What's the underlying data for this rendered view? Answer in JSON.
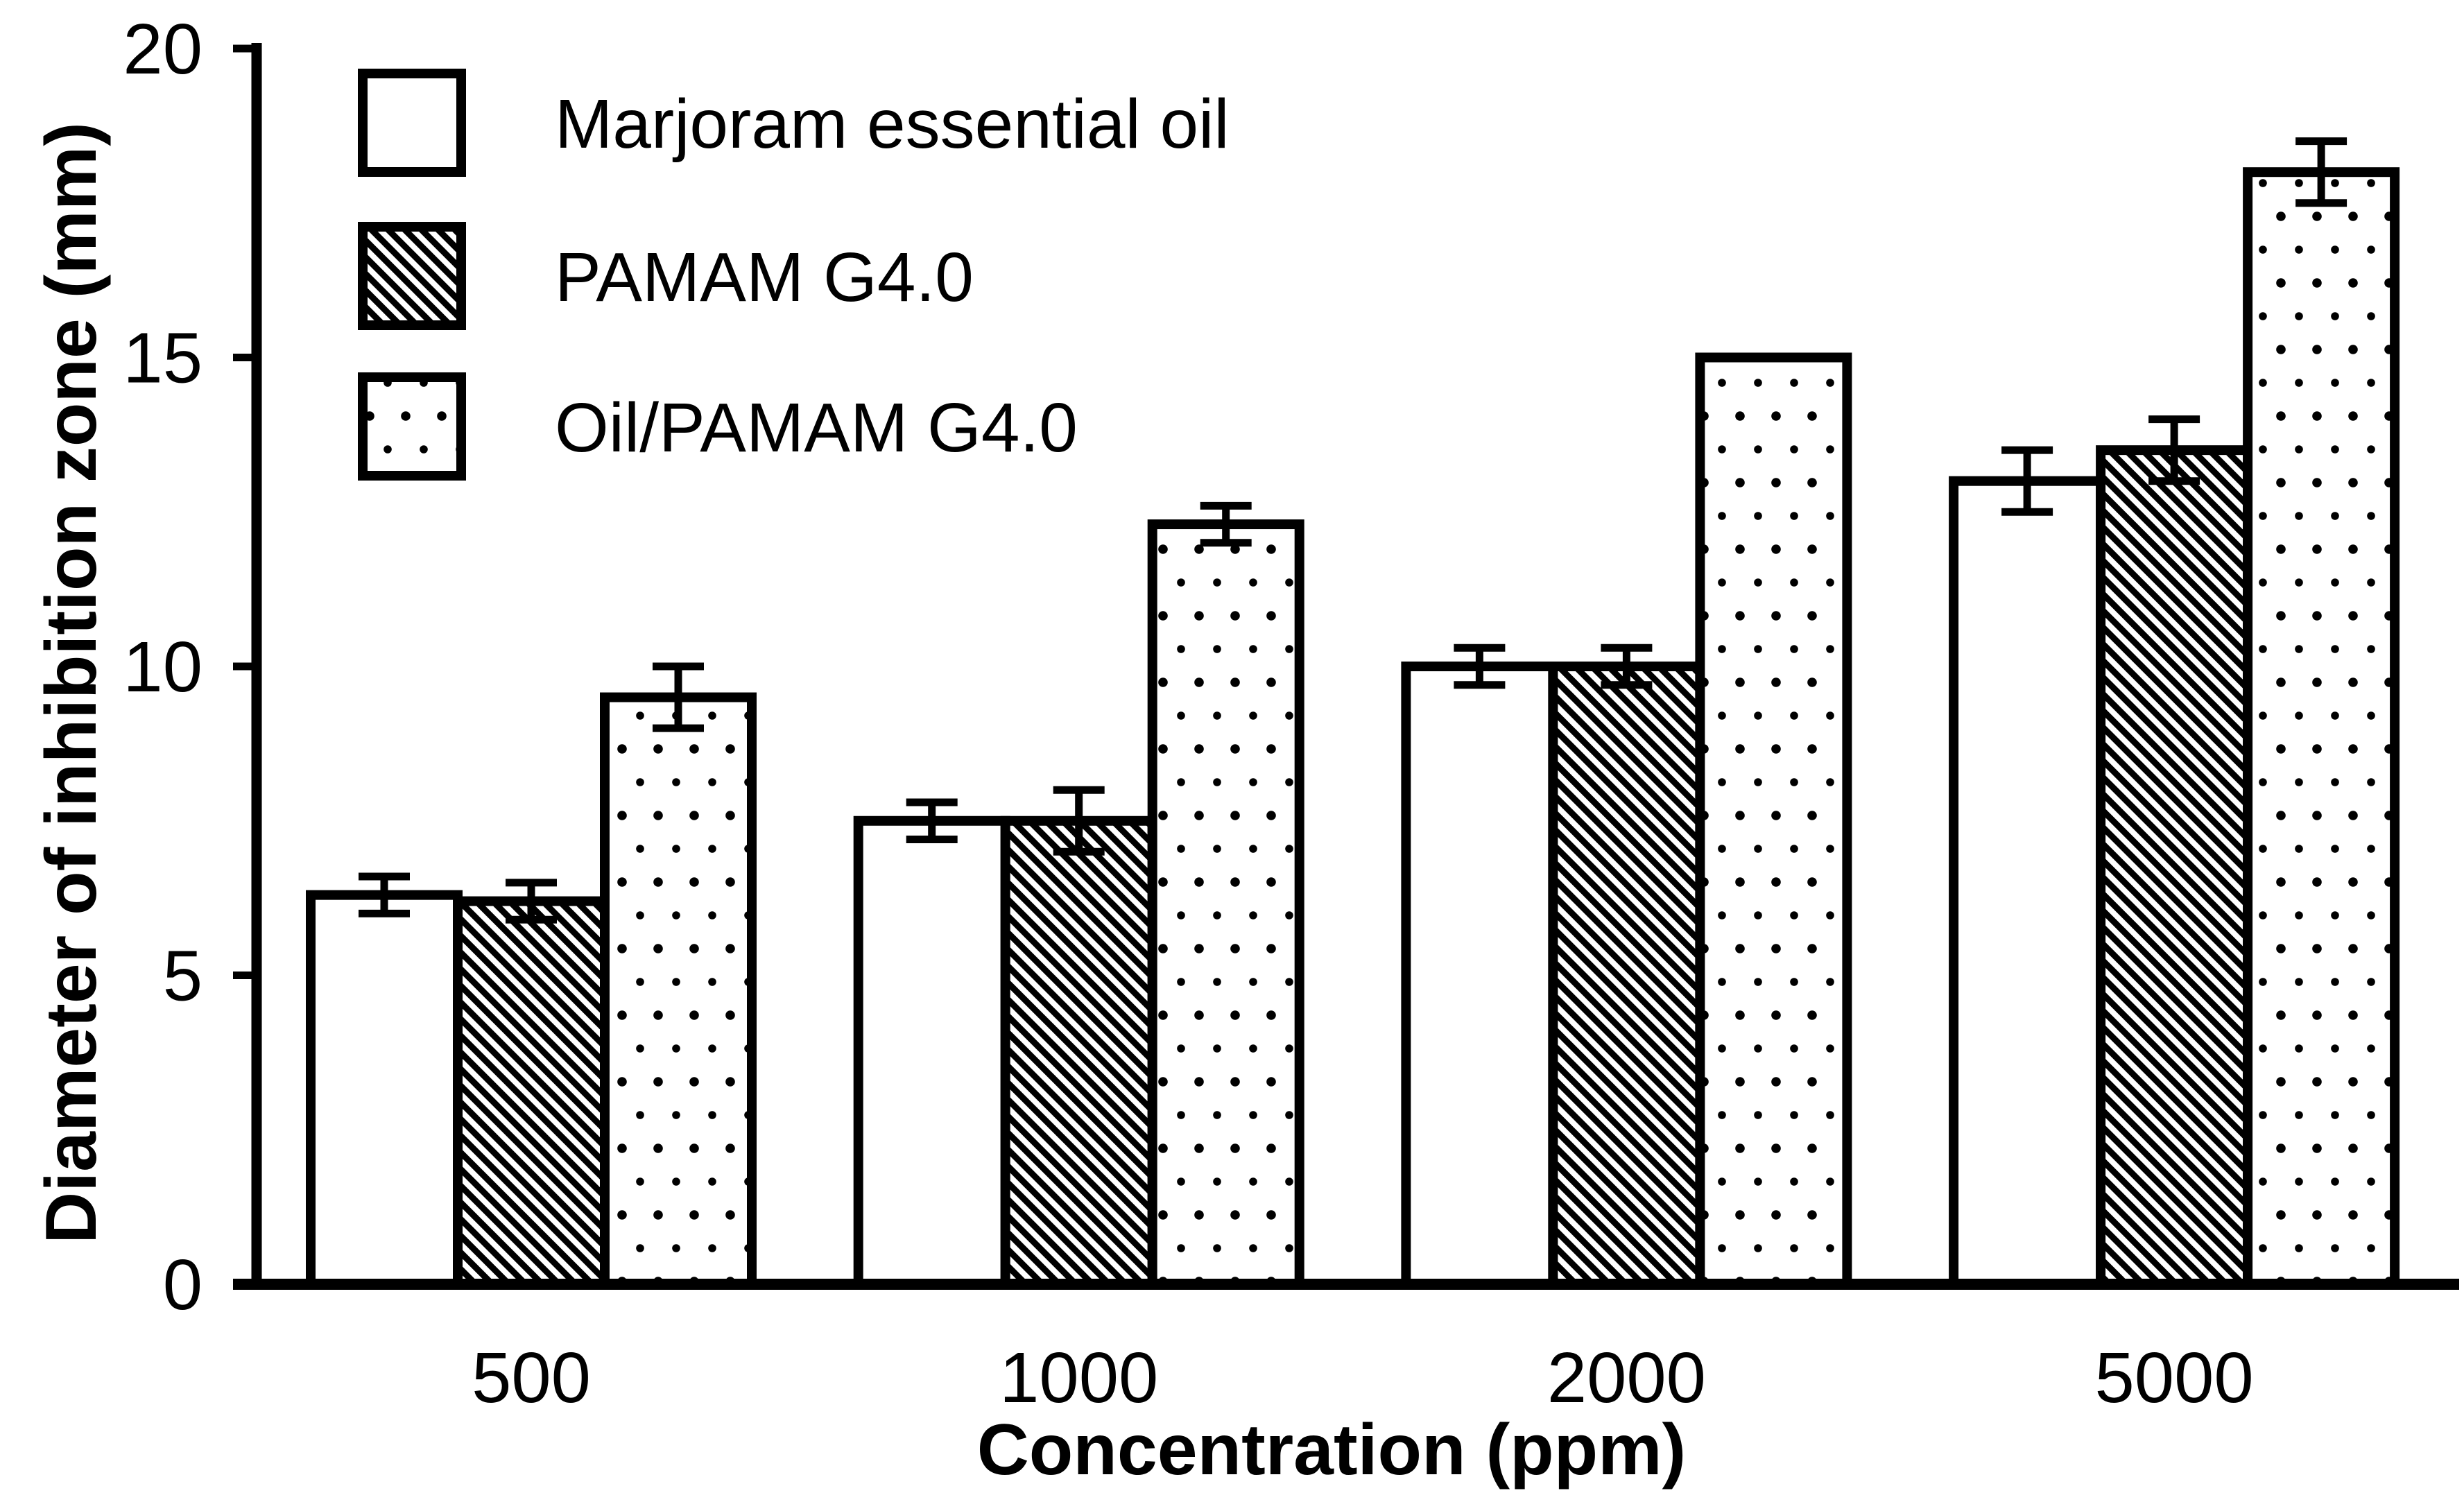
{
  "figure": {
    "background_color": "#ffffff",
    "ink_color": "#000000"
  },
  "chart_data": {
    "type": "bar",
    "title": "",
    "xlabel": "Concentration (ppm)",
    "ylabel": "Diameter of inhibition zone (mm)",
    "categories": [
      "500",
      "1000",
      "2000",
      "5000"
    ],
    "series": [
      {
        "name": "Marjoram essential oil",
        "pattern": "plain",
        "values": [
          6.3,
          7.5,
          10.0,
          13.0
        ],
        "errors": [
          0.3,
          0.3,
          0.3,
          0.5
        ]
      },
      {
        "name": "PAMAM G4.0",
        "pattern": "hatch",
        "values": [
          6.2,
          7.5,
          10.0,
          13.5
        ],
        "errors": [
          0.3,
          0.5,
          0.3,
          0.5
        ]
      },
      {
        "name": "Oil/PAMAM G4.0",
        "pattern": "dots",
        "values": [
          9.5,
          12.3,
          15.0,
          18.0
        ],
        "errors": [
          0.5,
          0.3,
          null,
          0.5
        ]
      }
    ],
    "ylim": [
      0,
      20
    ],
    "yticks": [
      0,
      5,
      10,
      15,
      20
    ],
    "grid": false,
    "error_bars": true,
    "legend_position": "top-left-inside"
  }
}
